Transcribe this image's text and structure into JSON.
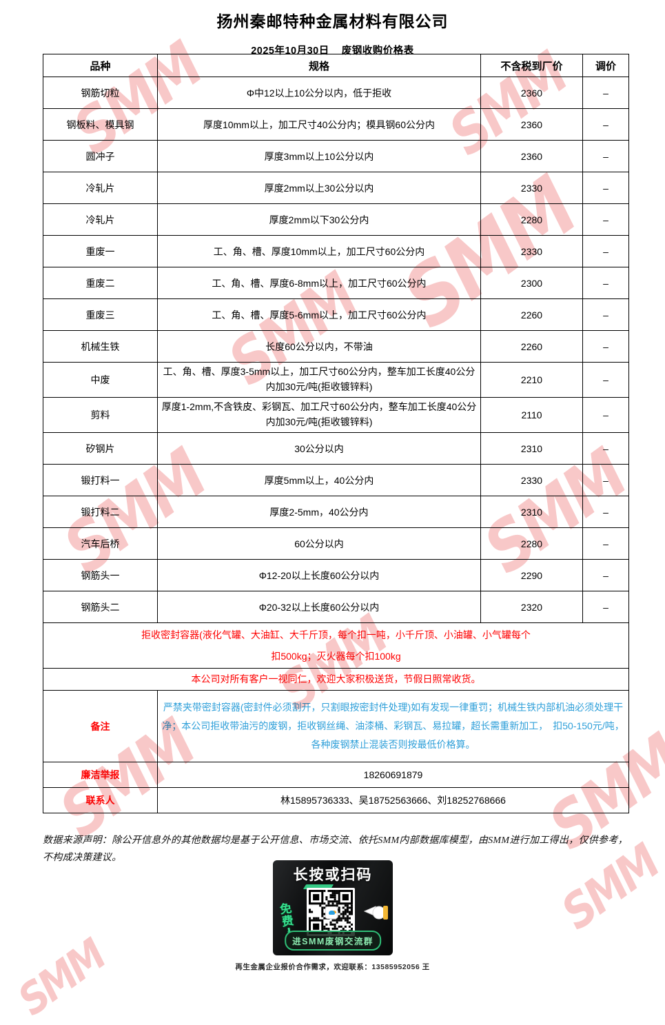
{
  "watermark": {
    "text": "SMM"
  },
  "header": {
    "title": "扬州秦邮特种金属材料有限公司",
    "date": "2025年10月30日",
    "subtitle": "废钢收购价格表"
  },
  "table": {
    "columns": [
      "品种",
      "规格",
      "不含税到厂价",
      "调价"
    ],
    "rows": [
      {
        "variety": "钢筋切粒",
        "spec": "Φ中12以上10公分以内，低于拒收",
        "price": "2360",
        "adj": "–"
      },
      {
        "variety": "钢板料、模具钢",
        "spec": "厚度10mm以上，加工尺寸40公分内；模具钢60公分内",
        "price": "2360",
        "adj": "–"
      },
      {
        "variety": "圆冲子",
        "spec": "厚度3mm以上10公分以内",
        "price": "2360",
        "adj": "–"
      },
      {
        "variety": "冷轧片",
        "spec": "厚度2mm以上30公分以内",
        "price": "2330",
        "adj": "–"
      },
      {
        "variety": "冷轧片",
        "spec": "厚度2mm以下30公分内",
        "price": "2280",
        "adj": "–"
      },
      {
        "variety": "重废一",
        "spec": "工、角、槽、厚度10mm以上，加工尺寸60公分内",
        "price": "2330",
        "adj": "–"
      },
      {
        "variety": "重废二",
        "spec": "工、角、槽、厚度6-8mm以上，加工尺寸60公分内",
        "price": "2300",
        "adj": "–"
      },
      {
        "variety": "重废三",
        "spec": "工、角、槽、厚度5-6mm以上，加工尺寸60公分内",
        "price": "2260",
        "adj": "–"
      },
      {
        "variety": "机械生铁",
        "spec": "长度60公分以内，不带油",
        "price": "2260",
        "adj": "–"
      },
      {
        "variety": "中废",
        "spec": "工、角、槽、厚度3-5mm以上，加工尺寸60公分内，整车加工长度40公分内加30元/吨(拒收镀锌料)",
        "price": "2210",
        "adj": "–"
      },
      {
        "variety": "剪料",
        "spec": "厚度1-2mm,不含铁皮、彩钢瓦、加工尺寸60公分内，整车加工长度40公分内加30元/吨(拒收镀锌料)",
        "price": "2110",
        "adj": "–"
      },
      {
        "variety": "矽钢片",
        "spec": "30公分以内",
        "price": "2310",
        "adj": "–"
      },
      {
        "variety": "锻打料一",
        "spec": "厚度5mm以上，40公分内",
        "price": "2330",
        "adj": "–"
      },
      {
        "variety": "锻打料二",
        "spec": "厚度2-5mm，40公分内",
        "price": "2310",
        "adj": "–"
      },
      {
        "variety": "汽车后桥",
        "spec": "60公分以内",
        "price": "2280",
        "adj": "–"
      },
      {
        "variety": "钢筋头一",
        "spec": "Φ12-20以上长度60公分以内",
        "price": "2290",
        "adj": "–"
      },
      {
        "variety": "钢筋头二",
        "spec": "Φ20-32以上长度60公分以内",
        "price": "2320",
        "adj": "–"
      }
    ],
    "notes": {
      "reject_line1": "拒收密封容器(液化气罐、大油缸、大千斤顶，每个扣一吨，小千斤顶、小油罐、小气罐每个",
      "reject_line2": "扣500kg；灭火器每个扣100kg",
      "welcome": "本公司对所有客户一视同仁，欢迎大家积极送货，节假日照常收货。"
    },
    "remark": {
      "label": "备注",
      "content": "严禁夹带密封容器(密封件必须割开，只割眼按密封件处理)如有发现一律重罚；机械生铁内部机油必须处理干净；本公司拒收带油污的废钢，拒收钢丝绳、油漆桶、彩钢瓦、易拉罐，超长需重新加工，　扣50-150元/吨，各种废钢禁止混装否则按最低价格算。"
    },
    "report": {
      "label": "廉洁举报",
      "value": "18260691879"
    },
    "contact": {
      "label": "联系人",
      "value": "林15895736333、吴18752563666、刘18252768666"
    }
  },
  "footer": {
    "disclaimer": "数据来源声明：除公开信息外的其他数据均是基于公开信息、市场交流、依托SMM内部数据库模型，由SMM进行加工得出，仅供参考，不构成决策建议。",
    "banner": {
      "title": "长按或扫码",
      "free_label": "免费",
      "button_label": "进SMM废钢交流群"
    },
    "bottom_line": "再生金属企业报价合作需求，欢迎联系：13585952056 王"
  },
  "colors": {
    "accent_red": "#FE0000",
    "remark_blue": "#2E9FD9",
    "banner_green": "#35C985",
    "watermark_pink": "#EC6E6E"
  }
}
